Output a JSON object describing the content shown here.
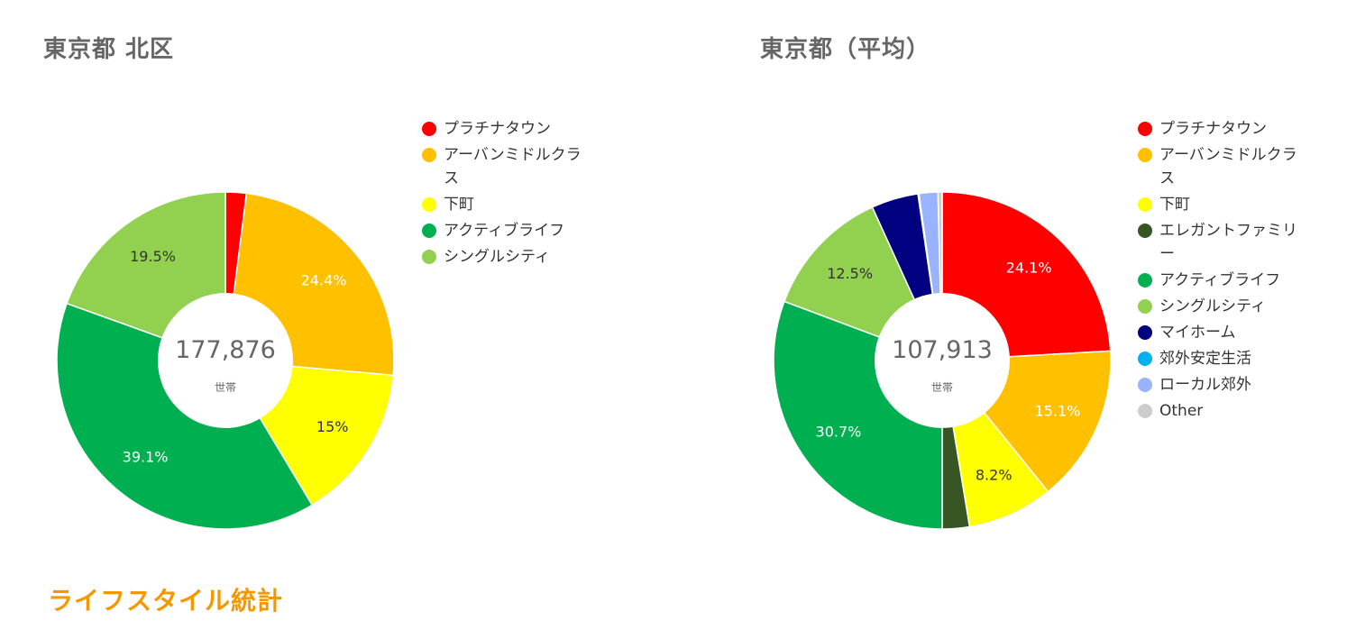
{
  "section_heading": "ライフスタイル統計",
  "chart_data": [
    {
      "type": "pie",
      "title": "東京都 北区",
      "center_value": "177,876",
      "center_unit": "世帯",
      "categories": [
        "プラチナタウン",
        "アーバンミドルクラス",
        "下町",
        "アクティブライフ",
        "シングルシティ"
      ],
      "values": [
        2.0,
        24.4,
        15.0,
        39.1,
        19.5
      ],
      "data_labels": [
        "",
        "24.4%",
        "15%",
        "39.1%",
        "19.5%"
      ],
      "colors": [
        "#ff0000",
        "#ffc000",
        "#ffff00",
        "#00b050",
        "#92d050"
      ],
      "label_colors": [
        "#ffffff",
        "#ffffff",
        "#333333",
        "#ffffff",
        "#333333"
      ],
      "legend_position": "right"
    },
    {
      "type": "pie",
      "title": "東京都（平均）",
      "center_value": "107,913",
      "center_unit": "世帯",
      "categories": [
        "プラチナタウン",
        "アーバンミドルクラス",
        "下町",
        "エレガントファミリー",
        "アクティブライフ",
        "シングルシティ",
        "マイホーム",
        "郊外安定生活",
        "ローカル郊外",
        "Other"
      ],
      "values": [
        24.1,
        15.1,
        8.2,
        2.6,
        30.7,
        12.5,
        4.5,
        0.1,
        1.8,
        0.4
      ],
      "data_labels": [
        "24.1%",
        "15.1%",
        "8.2%",
        "",
        "30.7%",
        "12.5%",
        "",
        "",
        "",
        ""
      ],
      "colors": [
        "#ff0000",
        "#ffc000",
        "#ffff00",
        "#375623",
        "#00b050",
        "#92d050",
        "#000080",
        "#00b0f0",
        "#99b3ff",
        "#cccccc"
      ],
      "label_colors": [
        "#ffffff",
        "#ffffff",
        "#333333",
        "#ffffff",
        "#ffffff",
        "#333333",
        "#ffffff",
        "#ffffff",
        "#ffffff",
        "#ffffff"
      ],
      "legend_position": "right"
    }
  ]
}
